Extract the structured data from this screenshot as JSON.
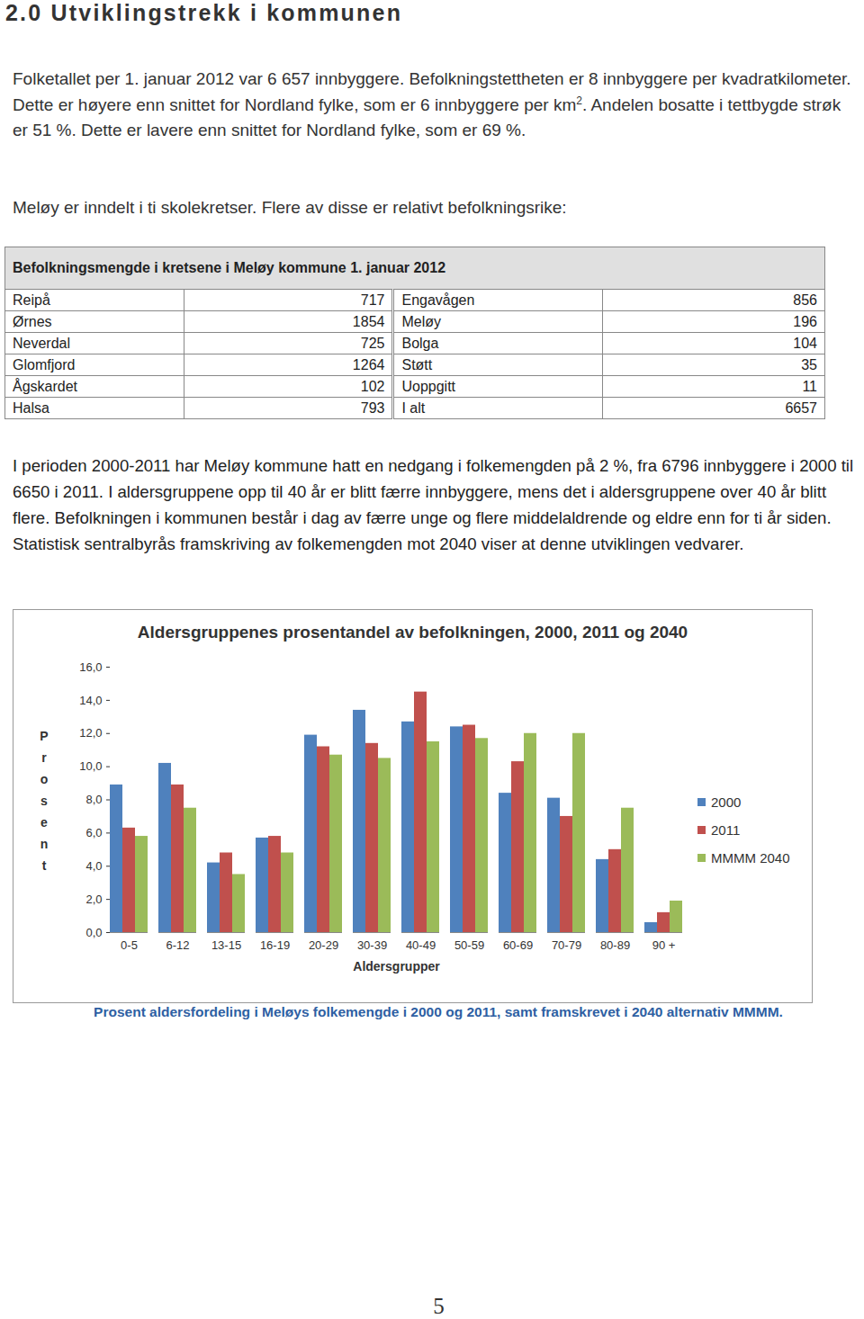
{
  "heading": "2.0 Utviklingstrekk i kommunen",
  "paragraph_1": [
    {
      "text": "Folketallet per 1. januar 2012 var 6 657 innbyggere. Befolkningstettheten er 8 innbyggere per kvadratkilometer. Dette er høyere enn snittet for Nordland fylke, som er 6 innbyggere per km"
    },
    {
      "sup": "2"
    },
    {
      "text": ". Andelen bosatte i tettbygde strøk er 51 %. Dette er lavere enn snittet for Nordland fylke, som er 69 %."
    }
  ],
  "paragraph_2": "Meløy er inndelt i ti skolekretser. Flere av disse er relativt befolkningsrike:",
  "table": {
    "title": "Befolkningsmengde i kretsene i Meløy kommune 1. januar 2012",
    "rows": [
      [
        "Reipå",
        "717",
        "Engavågen",
        "856"
      ],
      [
        "Ørnes",
        "1854",
        "Meløy",
        "196"
      ],
      [
        "Neverdal",
        "725",
        "Bolga",
        "104"
      ],
      [
        "Glomfjord",
        "1264",
        "Støtt",
        "35"
      ],
      [
        "Ågskardet",
        "102",
        "Uoppgitt",
        "11"
      ],
      [
        "Halsa",
        "793",
        "I alt",
        "6657"
      ]
    ]
  },
  "paragraph_3": "I perioden 2000-2011 har Meløy kommune hatt en nedgang i folkemengden på 2 %, fra 6796 innbyggere i 2000 til 6650 i 2011. I aldersgruppene opp til 40 år er blitt færre innbyggere, mens det i aldersgruppene over 40 år blitt flere. Befolkningen i kommunen består i dag av færre unge og flere middelaldrende og eldre enn for ti år siden. Statistisk sentralbyrås framskriving av folkemengden mot 2040 viser at denne utviklingen vedvarer.",
  "chart_data": {
    "type": "bar",
    "title": "Aldersgruppenes prosentandel av befolkningen, 2000, 2011 og 2040",
    "x_label": "Aldersgrupper",
    "y_label": "Prosent",
    "categories": [
      "0-5",
      "6-12",
      "13-15",
      "16-19",
      "20-29",
      "30-39",
      "40-49",
      "50-59",
      "60-69",
      "70-79",
      "80-89",
      "90 +"
    ],
    "series": [
      {
        "name": "2000",
        "color": "#4f81bd",
        "values": [
          8.9,
          10.2,
          4.2,
          5.7,
          11.9,
          13.4,
          12.7,
          12.4,
          8.4,
          8.1,
          4.4,
          0.6
        ]
      },
      {
        "name": "2011",
        "color": "#c0504d",
        "values": [
          6.3,
          8.9,
          4.8,
          5.8,
          11.2,
          11.4,
          14.5,
          12.5,
          10.3,
          7.0,
          5.0,
          1.2
        ]
      },
      {
        "name": "MMMM 2040",
        "color": "#9bbb59",
        "values": [
          5.8,
          7.5,
          3.5,
          4.8,
          10.7,
          10.5,
          11.5,
          11.7,
          12.0,
          12.0,
          7.5,
          1.9
        ]
      }
    ],
    "ylim": [
      0,
      16
    ],
    "yticks": [
      {
        "value": 0,
        "label": "0,0"
      },
      {
        "value": 2,
        "label": "2,0"
      },
      {
        "value": 4,
        "label": "4,0"
      },
      {
        "value": 6,
        "label": "6,0"
      },
      {
        "value": 8,
        "label": "8,0"
      },
      {
        "value": 10,
        "label": "10,0"
      },
      {
        "value": 12,
        "label": "12,0"
      },
      {
        "value": 14,
        "label": "14,0"
      },
      {
        "value": 16,
        "label": "16,0"
      }
    ],
    "grid": false,
    "legend": "right"
  },
  "caption": "Prosent aldersfordeling i Meløys folkemengde i 2000 og 2011, samt framskrevet i 2040 alternativ MMMM.",
  "page_number": "5"
}
